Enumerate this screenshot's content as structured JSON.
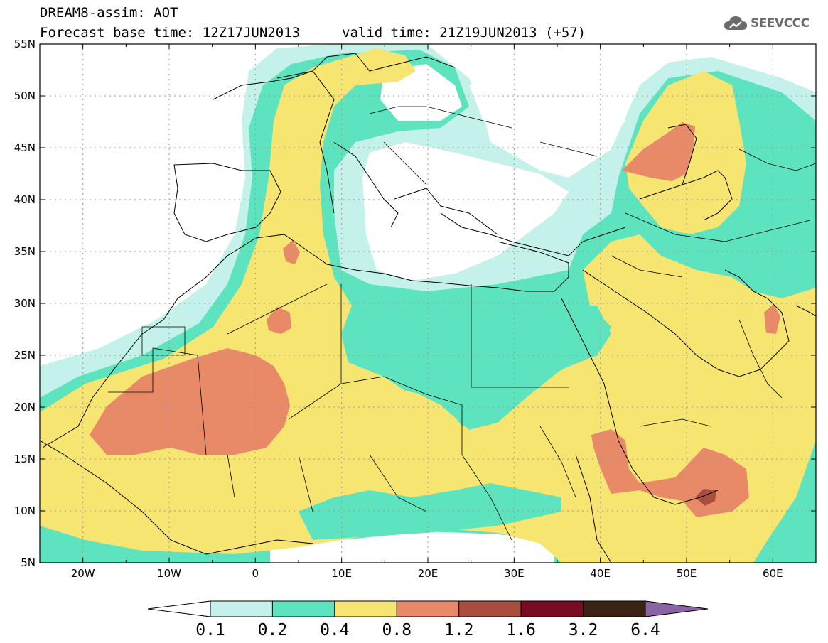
{
  "header": {
    "line1": "DREAM8-assim: AOT",
    "line2": "Forecast base time: 12Z17JUN2013",
    "valid": "valid time: 21Z19JUN2013 (+57)",
    "logo_text": "SEEVCCC",
    "logo_icon": "cloud-icon"
  },
  "map": {
    "lat_labels": [
      "55N",
      "50N",
      "45N",
      "40N",
      "35N",
      "30N",
      "25N",
      "20N",
      "15N",
      "10N",
      "5N"
    ],
    "lon_labels": [
      "20W",
      "10W",
      "0",
      "10E",
      "20E",
      "30E",
      "40E",
      "50E",
      "60E"
    ],
    "lon_range": [
      -25,
      65
    ],
    "lat_range": [
      5,
      55
    ],
    "gridlines": true
  },
  "colorbar": {
    "colors": [
      "#ffffff",
      "#c4f2ea",
      "#5ee3bf",
      "#f7e572",
      "#e88a68",
      "#a94e3e",
      "#7a0b22",
      "#3c2213",
      "#8a64a5"
    ],
    "labels": [
      "0.1",
      "0.2",
      "0.4",
      "0.8",
      "1.2",
      "1.6",
      "3.2",
      "6.4"
    ]
  }
}
